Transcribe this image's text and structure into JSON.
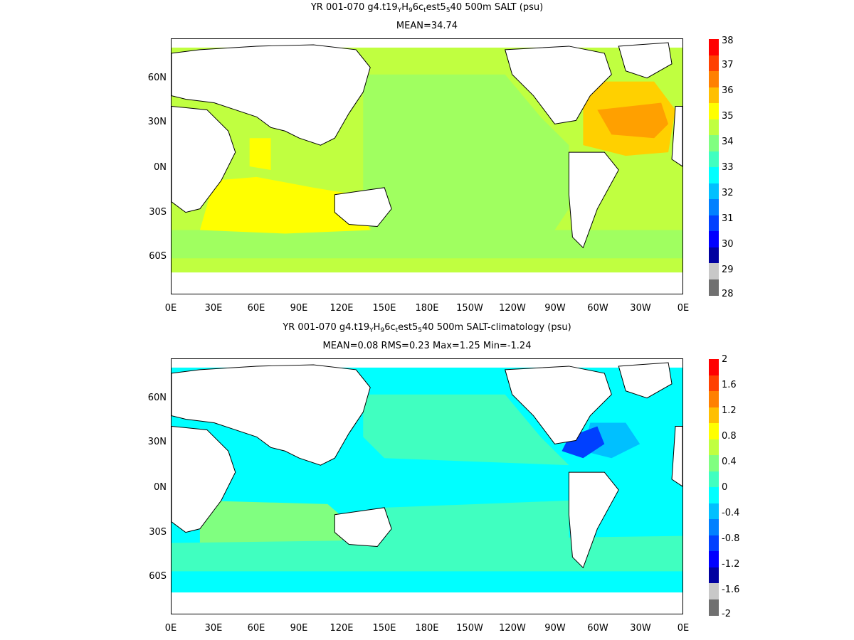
{
  "panels": [
    {
      "title_parts": {
        "pre": "YR 001-070 g4.t19",
        "s1": "Y",
        "m1": "H",
        "s2": "9",
        "m2": "6c",
        "s3": "t",
        "m3": "est5",
        "s4": "5",
        "post": "40 500m SALT (psu)"
      },
      "subtitle": "MEAN=34.74",
      "lat_labels": [
        "60N",
        "30N",
        "0N",
        "30S",
        "60S"
      ],
      "lon_labels": [
        "0E",
        "30E",
        "60E",
        "90E",
        "120E",
        "150E",
        "180E",
        "150W",
        "120W",
        "90W",
        "60W",
        "30W",
        "0E"
      ],
      "colorbar_labels": [
        "38",
        "37",
        "36",
        "35",
        "34",
        "33",
        "32",
        "31",
        "30",
        "29",
        "28"
      ],
      "colorbar_colors": [
        "#ff0000",
        "#ff4000",
        "#ff8000",
        "#ffbf00",
        "#ffff00",
        "#c0ff40",
        "#80ff80",
        "#40ffc0",
        "#00ffff",
        "#00c0ff",
        "#0080ff",
        "#0040ff",
        "#0000ff",
        "#0000a0",
        "#c8c8c8",
        "#707070"
      ],
      "field_colors": {
        "base": "#c0ff40",
        "pacific": "#a0ff60",
        "atlantic_hi": "#ffa000",
        "atlantic_mid": "#ffd000",
        "yellow": "#ffff00"
      }
    },
    {
      "title_parts": {
        "pre": "YR 001-070 g4.t19",
        "s1": "Y",
        "m1": "H",
        "s2": "9",
        "m2": "6c",
        "s3": "t",
        "m3": "est5",
        "s4": "5",
        "post": "40 500m SALT-climatology (psu)"
      },
      "subtitle": "MEAN=0.08   RMS=0.23   Max=1.25   Min=-1.24",
      "lat_labels": [
        "60N",
        "30N",
        "0N",
        "30S",
        "60S"
      ],
      "lon_labels": [
        "0E",
        "30E",
        "60E",
        "90E",
        "120E",
        "150E",
        "180E",
        "150W",
        "120W",
        "90W",
        "60W",
        "30W",
        "0E"
      ],
      "colorbar_labels": [
        "2",
        "1.6",
        "1.2",
        "0.8",
        "0.4",
        "0",
        "-0.4",
        "-0.8",
        "-1.2",
        "-1.6",
        "-2"
      ],
      "colorbar_colors": [
        "#ff0000",
        "#ff4000",
        "#ff8000",
        "#ffbf00",
        "#ffff00",
        "#c0ff40",
        "#80ff80",
        "#40ffc0",
        "#00ffff",
        "#00c0ff",
        "#0080ff",
        "#0040ff",
        "#0000ff",
        "#0000a0",
        "#c8c8c8",
        "#707070"
      ],
      "field_colors": {
        "base": "#00ffff",
        "pacific": "#40ffc0",
        "atlantic_hi": "#0040ff",
        "atlantic_mid": "#00c0ff",
        "yellow": "#80ff80"
      }
    }
  ]
}
